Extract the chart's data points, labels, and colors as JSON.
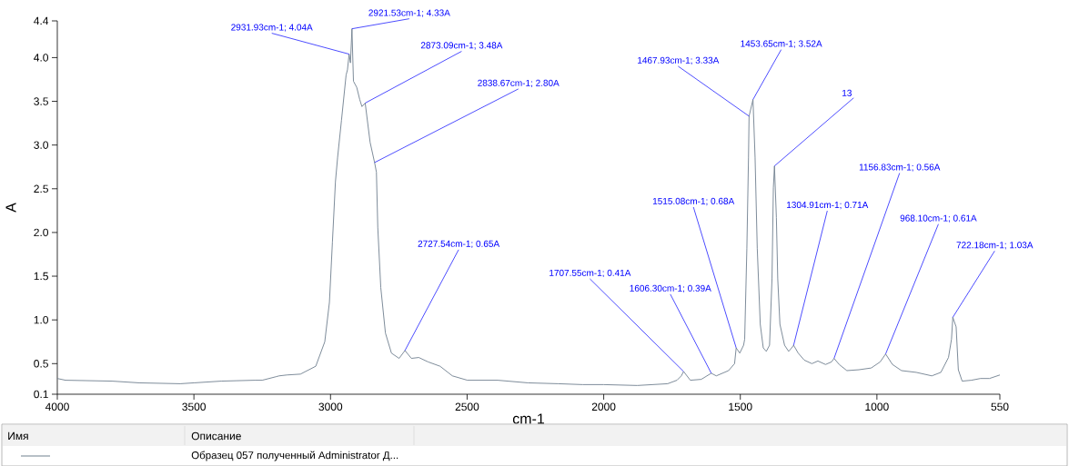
{
  "chart_data": {
    "type": "line",
    "xlabel": "cm-1",
    "ylabel": "A",
    "xlim": [
      4000,
      550
    ],
    "xticks": [
      4000,
      3500,
      3000,
      2500,
      2000,
      1500,
      1000,
      550
    ],
    "ylim": [
      0.15,
      4.42
    ],
    "yticks": [
      {
        "value": 0.15,
        "label": "0.1"
      },
      0.5,
      {
        "value": 1,
        "label": "1.0"
      },
      1.5,
      {
        "value": 2,
        "label": "2.0"
      },
      2.5,
      {
        "value": 3,
        "label": "3.0"
      },
      3.5,
      {
        "value": 4,
        "label": "4.0"
      },
      {
        "value": 4.42,
        "label": "4.4"
      }
    ],
    "color": "#6f7f8f",
    "x": [
      4000,
      3970,
      3800,
      3700,
      3550,
      3500,
      3400,
      3277,
      3250,
      3200,
      3188,
      3160,
      3110,
      3054,
      3021,
      3004,
      2993,
      2982,
      2974,
      2960,
      2943,
      2938,
      2931.93,
      2927,
      2921.53,
      2916,
      2904,
      2893,
      2885,
      2873.09,
      2855,
      2838.67,
      2832,
      2827,
      2816,
      2799,
      2777,
      2749,
      2727.54,
      2704,
      2677,
      2643,
      2599,
      2554,
      2499,
      2388,
      2277,
      2166,
      2077,
      2000,
      1877,
      1766,
      1732,
      1716,
      1707.55,
      1683,
      1643,
      1606.3,
      1588,
      1543,
      1521,
      1515.08,
      1502,
      1488,
      1484,
      1476,
      1470,
      1467.93,
      1453.65,
      1446,
      1438,
      1427,
      1416,
      1405,
      1393,
      1384,
      1379,
      1375,
      1368,
      1363,
      1355,
      1338,
      1323,
      1312,
      1304.91,
      1288,
      1266,
      1238,
      1216,
      1188,
      1166,
      1156.83,
      1138,
      1110,
      1066,
      1021,
      988,
      968.1,
      943,
      910,
      856,
      799,
      766,
      738,
      727,
      722.18,
      710,
      702,
      688,
      654,
      621,
      588,
      550
    ],
    "values": [
      0.33,
      0.31,
      0.3,
      0.28,
      0.27,
      0.28,
      0.3,
      0.31,
      0.31,
      0.35,
      0.36,
      0.37,
      0.38,
      0.47,
      0.75,
      1.2,
      1.89,
      2.58,
      2.86,
      3.28,
      3.8,
      3.86,
      4.04,
      3.94,
      4.33,
      3.73,
      3.66,
      3.52,
      3.44,
      3.48,
      3.03,
      2.8,
      2.69,
      2.06,
      1.37,
      0.85,
      0.62,
      0.56,
      0.65,
      0.56,
      0.57,
      0.52,
      0.47,
      0.36,
      0.31,
      0.31,
      0.28,
      0.27,
      0.26,
      0.26,
      0.25,
      0.27,
      0.31,
      0.36,
      0.41,
      0.31,
      0.32,
      0.39,
      0.36,
      0.42,
      0.5,
      0.68,
      0.62,
      0.71,
      0.78,
      1.82,
      2.86,
      3.33,
      3.52,
      2.86,
      1.82,
      0.95,
      0.68,
      0.64,
      0.71,
      1.47,
      2.51,
      2.76,
      2.17,
      1.47,
      0.95,
      0.71,
      0.64,
      0.68,
      0.71,
      0.62,
      0.54,
      0.5,
      0.53,
      0.49,
      0.52,
      0.56,
      0.49,
      0.42,
      0.43,
      0.45,
      0.52,
      0.61,
      0.49,
      0.42,
      0.4,
      0.36,
      0.4,
      0.57,
      0.78,
      1.03,
      0.92,
      0.43,
      0.3,
      0.31,
      0.33,
      0.33,
      0.37
    ],
    "annotations": [
      {
        "text": "2931.93cm-1; 4.04A",
        "x": 2931.93,
        "y": 4.04
      },
      {
        "text": "2921.53cm-1; 4.33A",
        "x": 2921.53,
        "y": 4.33
      },
      {
        "text": "2873.09cm-1; 3.48A",
        "x": 2873.09,
        "y": 3.48
      },
      {
        "text": "2838.67cm-1; 2.80A",
        "x": 2838.67,
        "y": 2.8
      },
      {
        "text": "2727.54cm-1; 0.65A",
        "x": 2727.54,
        "y": 0.65
      },
      {
        "text": "1707.55cm-1; 0.41A",
        "x": 1707.55,
        "y": 0.41
      },
      {
        "text": "1606.30cm-1; 0.39A",
        "x": 1606.3,
        "y": 0.39
      },
      {
        "text": "1515.08cm-1; 0.68A",
        "x": 1515.08,
        "y": 0.68
      },
      {
        "text": "1467.93cm-1; 3.33A",
        "x": 1467.93,
        "y": 3.33
      },
      {
        "text": "1453.65cm-1; 3.52A",
        "x": 1453.65,
        "y": 3.52
      },
      {
        "text": "13",
        "x": 1375,
        "y": 2.76
      },
      {
        "text": "1304.91cm-1; 0.71A",
        "x": 1304.91,
        "y": 0.71
      },
      {
        "text": "1156.83cm-1; 0.56A",
        "x": 1156.83,
        "y": 0.56
      },
      {
        "text": "968.10cm-1; 0.61A",
        "x": 968.1,
        "y": 0.61
      },
      {
        "text": "722.18cm-1; 1.03A",
        "x": 722.18,
        "y": 1.03
      },
      "Имя",
      "Описание",
      "Образец 057 полученный Administrator Д..."
    ]
  }
}
